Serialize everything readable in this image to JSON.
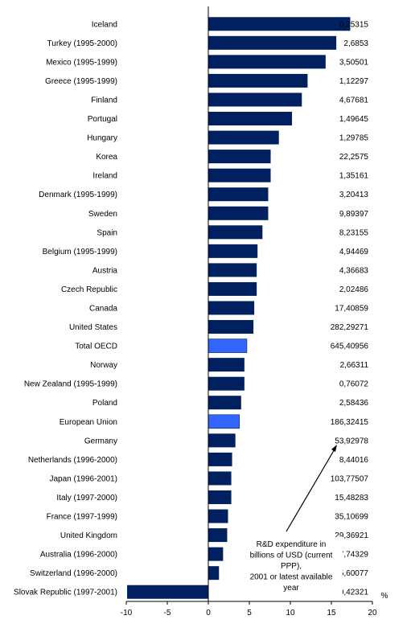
{
  "chart_data": {
    "type": "bar",
    "orientation": "horizontal",
    "xlim": [
      -10,
      20
    ],
    "xticks": [
      -10,
      -5,
      0,
      5,
      10,
      15,
      20
    ],
    "unit_label": "%",
    "annotation": "R&D expenditure in billions of USD (current PPP), 2001 or latest available year",
    "annotation_lines": [
      "R&D expenditure in",
      "billions of USD (current",
      "PPP),",
      "2001 or latest available",
      "year"
    ],
    "grid": false,
    "colors": {
      "bar": "#002060",
      "highlight": "#3366ff",
      "axis": "#000000"
    },
    "rows": [
      {
        "category": "Iceland",
        "value": 17.3,
        "label": "0,25315",
        "highlight": false
      },
      {
        "category": "Turkey (1995-2000)",
        "value": 15.6,
        "label": "2,6853",
        "highlight": false
      },
      {
        "category": "Mexico (1995-1999)",
        "value": 14.3,
        "label": "3,50501",
        "highlight": false
      },
      {
        "category": "Greece (1995-1999)",
        "value": 12.1,
        "label": "1,12297",
        "highlight": false
      },
      {
        "category": "Finland",
        "value": 11.4,
        "label": "4,67681",
        "highlight": false
      },
      {
        "category": "Portugal",
        "value": 10.2,
        "label": "1,49645",
        "highlight": false
      },
      {
        "category": "Hungary",
        "value": 8.6,
        "label": "1,29785",
        "highlight": false
      },
      {
        "category": "Korea",
        "value": 7.6,
        "label": "22,2575",
        "highlight": false
      },
      {
        "category": "Ireland",
        "value": 7.6,
        "label": "1,35161",
        "highlight": false
      },
      {
        "category": "Denmark (1995-1999)",
        "value": 7.3,
        "label": "3,20413",
        "highlight": false
      },
      {
        "category": "Sweden",
        "value": 7.3,
        "label": "9,89397",
        "highlight": false
      },
      {
        "category": "Spain",
        "value": 6.6,
        "label": "8,23155",
        "highlight": false
      },
      {
        "category": "Belgium (1995-1999)",
        "value": 6.0,
        "label": "4,94469",
        "highlight": false
      },
      {
        "category": "Austria",
        "value": 5.9,
        "label": "4,36683",
        "highlight": false
      },
      {
        "category": "Czech Republic",
        "value": 5.9,
        "label": "2,02486",
        "highlight": false
      },
      {
        "category": "Canada",
        "value": 5.6,
        "label": "17,40859",
        "highlight": false
      },
      {
        "category": "United States",
        "value": 5.5,
        "label": "282,29271",
        "highlight": false
      },
      {
        "category": "Total OECD",
        "value": 4.7,
        "label": "645,40956",
        "highlight": true
      },
      {
        "category": "Norway",
        "value": 4.4,
        "label": "2,66311",
        "highlight": false
      },
      {
        "category": "New Zealand (1995-1999)",
        "value": 4.4,
        "label": "0,76072",
        "highlight": false
      },
      {
        "category": "Poland",
        "value": 4.0,
        "label": "2,58436",
        "highlight": false
      },
      {
        "category": "European Union",
        "value": 3.8,
        "label": "186,32415",
        "highlight": true
      },
      {
        "category": "Germany",
        "value": 3.3,
        "label": "53,92978",
        "highlight": false
      },
      {
        "category": "Netherlands (1996-2000)",
        "value": 2.9,
        "label": "8,44016",
        "highlight": false
      },
      {
        "category": "Japan (1996-2001)",
        "value": 2.8,
        "label": "103,77507",
        "highlight": false
      },
      {
        "category": "Italy (1997-2000)",
        "value": 2.8,
        "label": "15,48283",
        "highlight": false
      },
      {
        "category": "France (1997-1999)",
        "value": 2.4,
        "label": "35,10699",
        "highlight": false
      },
      {
        "category": "United Kingdom",
        "value": 2.3,
        "label": "29,36921",
        "highlight": false
      },
      {
        "category": "Australia (1996-2000)",
        "value": 1.8,
        "label": "7,74329",
        "highlight": false
      },
      {
        "category": "Switzerland (1996-2000)",
        "value": 1.3,
        "label": "5,60077",
        "highlight": false
      },
      {
        "category": "Slovak Republic (1997-2001)",
        "value": -9.9,
        "label": "0,42321",
        "highlight": false
      }
    ]
  }
}
